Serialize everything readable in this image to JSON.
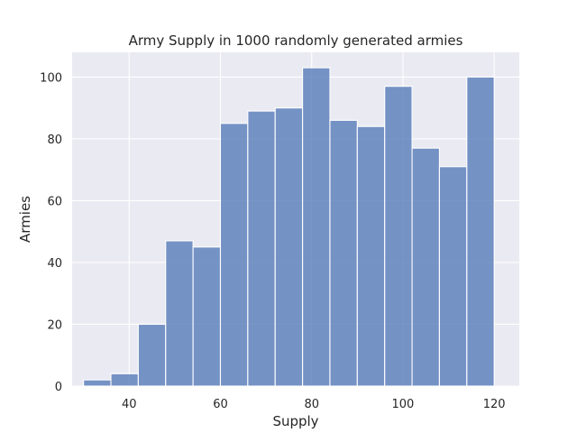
{
  "chart_data": {
    "type": "bar",
    "title": "Army Supply in 1000 randomly generated armies",
    "xlabel": "Supply",
    "ylabel": "Armies",
    "xlim": [
      27.5,
      125.5
    ],
    "ylim": [
      0,
      108
    ],
    "xticks": [
      40,
      60,
      80,
      100,
      120
    ],
    "yticks": [
      0,
      20,
      40,
      60,
      80,
      100
    ],
    "grid": true,
    "bins": [
      {
        "start": 30,
        "end": 36,
        "value": 2
      },
      {
        "start": 36,
        "end": 42,
        "value": 4
      },
      {
        "start": 42,
        "end": 48,
        "value": 20
      },
      {
        "start": 48,
        "end": 54,
        "value": 47
      },
      {
        "start": 54,
        "end": 60,
        "value": 45
      },
      {
        "start": 60,
        "end": 66,
        "value": 85
      },
      {
        "start": 66,
        "end": 72,
        "value": 89
      },
      {
        "start": 72,
        "end": 78,
        "value": 90
      },
      {
        "start": 78,
        "end": 84,
        "value": 103
      },
      {
        "start": 84,
        "end": 90,
        "value": 86
      },
      {
        "start": 90,
        "end": 96,
        "value": 84
      },
      {
        "start": 96,
        "end": 102,
        "value": 97
      },
      {
        "start": 102,
        "end": 108,
        "value": 77
      },
      {
        "start": 108,
        "end": 114,
        "value": 71
      },
      {
        "start": 114,
        "end": 120,
        "value": 100
      }
    ]
  }
}
